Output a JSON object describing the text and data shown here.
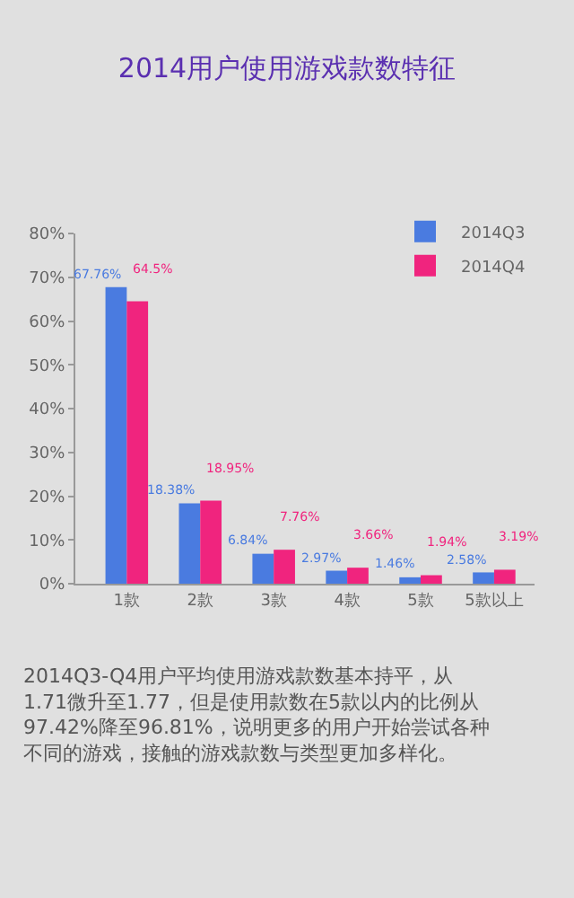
{
  "chart_data": {
    "type": "bar",
    "title": "2014用户使用游戏款数特征",
    "categories": [
      "1款",
      "2款",
      "3款",
      "4款",
      "5款",
      "5款以上"
    ],
    "series": [
      {
        "name": "2014Q3",
        "color": "#4a7be0",
        "values": [
          67.76,
          18.38,
          6.84,
          2.97,
          1.46,
          2.58
        ],
        "value_labels": [
          "67.76%",
          "18.38%",
          "6.84%",
          "2.97%",
          "1.46%",
          "2.58%"
        ]
      },
      {
        "name": "2014Q4",
        "color": "#f0247e",
        "values": [
          64.5,
          18.95,
          7.76,
          3.66,
          1.94,
          3.19
        ],
        "value_labels": [
          "64.5%",
          "18.95%",
          "7.76%",
          "3.66%",
          "1.94%",
          "3.19%"
        ]
      }
    ],
    "ylim": [
      0,
      80
    ],
    "yticks": [
      {
        "value": 0,
        "label": "0%"
      },
      {
        "value": 10,
        "label": "10%"
      },
      {
        "value": 20,
        "label": "20%"
      },
      {
        "value": 30,
        "label": "30%"
      },
      {
        "value": 40,
        "label": "40%"
      },
      {
        "value": 50,
        "label": "50%"
      },
      {
        "value": 60,
        "label": "60%"
      },
      {
        "value": 70,
        "label": "70%"
      },
      {
        "value": 80,
        "label": "80%"
      }
    ],
    "grid": false,
    "legend": "top right",
    "annotations": [
      "2014Q3-Q4用户平均使用游戏款数基本持平，从1.71微升至1.77，但是使用款数在5款以内的比例从97.42%降至96.81%，说明更多的用户开始尝试各种不同的游戏，接触的游戏款数与类型更加多样化。"
    ]
  }
}
